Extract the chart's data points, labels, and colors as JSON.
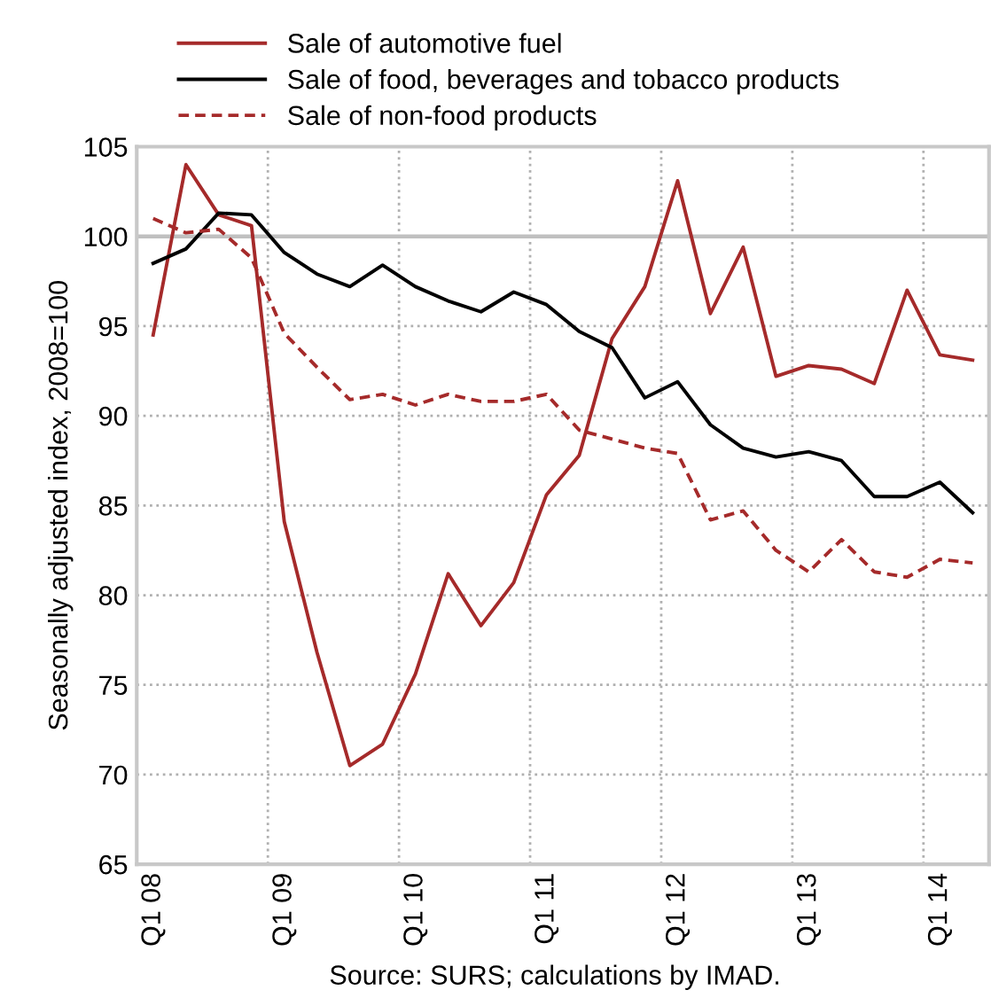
{
  "chart_data": {
    "type": "line",
    "ylabel": "Seasonally adjusted index, 2008=100",
    "annotations": [
      "Source: SURS; calculations by IMAD."
    ],
    "categories": [
      "Q1 08",
      null,
      null,
      null,
      "Q1 09",
      null,
      null,
      null,
      "Q1 10",
      null,
      null,
      null,
      "Q1 11",
      null,
      null,
      null,
      "Q1 12",
      null,
      null,
      null,
      "Q1 13",
      null,
      null,
      null,
      "Q1 14",
      null
    ],
    "series": [
      {
        "name": "Sale of automotive fuel",
        "color": "#a52a2a",
        "line_style": "solid",
        "values": [
          94.5,
          104.0,
          101.2,
          100.6,
          84.1,
          76.8,
          70.5,
          71.7,
          75.6,
          81.2,
          78.3,
          80.7,
          85.6,
          87.8,
          94.3,
          97.2,
          103.1,
          95.7,
          99.4,
          92.2,
          92.8,
          92.6,
          91.8,
          97.0,
          93.4,
          93.1
        ]
      },
      {
        "name": "Sale of food, beverages and tobacco products",
        "color": "#000000",
        "line_style": "solid",
        "values": [
          98.5,
          99.3,
          101.3,
          101.2,
          99.1,
          97.9,
          97.2,
          98.4,
          97.2,
          96.4,
          95.8,
          96.9,
          96.2,
          94.7,
          93.8,
          91.0,
          91.9,
          89.5,
          88.2,
          87.7,
          88.0,
          87.5,
          85.5,
          85.5,
          86.3,
          84.6
        ]
      },
      {
        "name": "Sale of non-food products",
        "color": "#a52a2a",
        "line_style": "dashed",
        "values": [
          101.0,
          100.2,
          100.4,
          98.8,
          94.6,
          92.7,
          90.9,
          91.2,
          90.6,
          91.2,
          90.8,
          90.8,
          91.2,
          89.2,
          88.7,
          88.2,
          87.9,
          84.2,
          84.7,
          82.5,
          81.3,
          83.1,
          81.3,
          81.0,
          82.0,
          81.8
        ]
      }
    ],
    "ylim": [
      65,
      105
    ],
    "yticks": [
      65,
      70,
      75,
      80,
      85,
      90,
      95,
      100,
      105
    ],
    "ref_lines": [
      {
        "axis": "y",
        "value": 100,
        "color": "#c0c0c0",
        "line_style": "solid"
      }
    ],
    "grid": true,
    "legend": "top",
    "marker": "none"
  }
}
